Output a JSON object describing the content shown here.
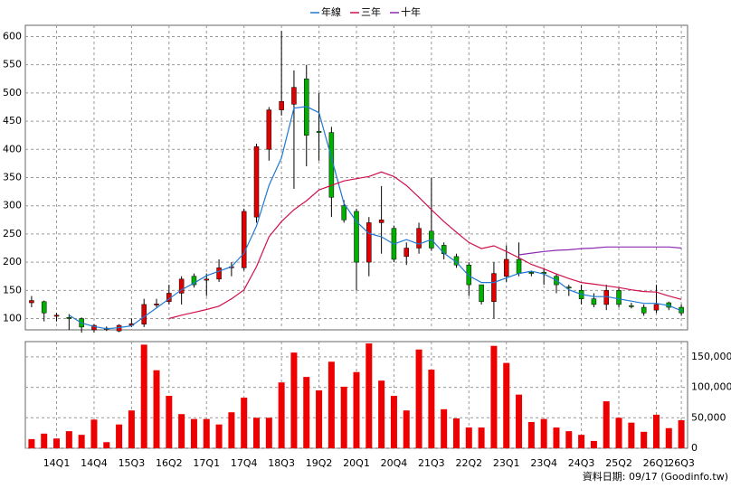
{
  "footer": "資料日期: 09/17 (Goodinfo.tw)",
  "chart_data": [
    {
      "type": "candlestick",
      "categories": [
        null,
        null,
        "14Q1",
        null,
        null,
        "14Q4",
        null,
        null,
        "15Q3",
        null,
        null,
        "16Q2",
        null,
        null,
        "17Q1",
        null,
        null,
        "17Q4",
        null,
        null,
        "18Q3",
        null,
        null,
        "19Q2",
        null,
        null,
        "20Q1",
        null,
        null,
        "20Q4",
        null,
        null,
        "21Q3",
        null,
        null,
        "22Q2",
        null,
        null,
        "23Q1",
        null,
        null,
        "23Q4",
        null,
        null,
        "24Q3",
        null,
        null,
        "25Q2",
        null,
        null,
        "26Q1",
        null,
        "26Q3"
      ],
      "open": [
        128,
        130,
        104,
        102,
        100,
        80,
        83,
        78,
        88,
        90,
        124,
        130,
        145,
        175,
        168,
        170,
        190,
        190,
        280,
        400,
        470,
        480,
        525,
        432,
        430,
        300,
        290,
        200,
        270,
        260,
        210,
        225,
        255,
        230,
        210,
        195,
        160,
        130,
        175,
        205,
        182,
        182,
        175,
        156,
        150,
        135,
        125,
        150,
        123,
        120,
        115,
        128,
        120
      ],
      "high": [
        140,
        132,
        110,
        108,
        102,
        90,
        86,
        90,
        100,
        135,
        135,
        160,
        175,
        180,
        180,
        205,
        200,
        295,
        410,
        475,
        610,
        540,
        550,
        500,
        440,
        310,
        295,
        280,
        335,
        265,
        235,
        270,
        350,
        235,
        215,
        200,
        160,
        200,
        230,
        235,
        185,
        190,
        180,
        160,
        160,
        145,
        160,
        155,
        128,
        125,
        160,
        130,
        125
      ],
      "low": [
        120,
        95,
        95,
        80,
        75,
        75,
        78,
        76,
        85,
        85,
        120,
        125,
        125,
        155,
        140,
        165,
        175,
        185,
        270,
        380,
        460,
        330,
        370,
        380,
        280,
        270,
        150,
        175,
        215,
        200,
        195,
        215,
        220,
        205,
        190,
        140,
        125,
        100,
        165,
        175,
        175,
        160,
        145,
        140,
        125,
        120,
        115,
        120,
        118,
        105,
        110,
        115,
        105
      ],
      "close": [
        132,
        110,
        106,
        100,
        85,
        88,
        81,
        88,
        91,
        125,
        126,
        145,
        170,
        160,
        170,
        190,
        192,
        290,
        405,
        470,
        485,
        510,
        425,
        430,
        315,
        275,
        200,
        270,
        275,
        205,
        225,
        260,
        225,
        215,
        195,
        160,
        130,
        180,
        205,
        180,
        180,
        180,
        160,
        154,
        135,
        125,
        150,
        125,
        121,
        110,
        125,
        120,
        110
      ],
      "up_color": "#e00000",
      "down_color": "#00b000",
      "ylim": [
        80,
        620
      ],
      "yticks": [
        100,
        150,
        200,
        250,
        300,
        350,
        400,
        450,
        500,
        550,
        600
      ],
      "grid": true,
      "series": [
        {
          "name": "年線",
          "color": "#1f78d1",
          "values": [
            null,
            null,
            null,
            106,
            92,
            86,
            82,
            84,
            87,
            103,
            119,
            135,
            151,
            163,
            176,
            184,
            192,
            216,
            264,
            336,
            385,
            473,
            476,
            465,
            385,
            304,
            272,
            251,
            245,
            232,
            240,
            232,
            240,
            216,
            200,
            176,
            164,
            164,
            172,
            180,
            184,
            179,
            168,
            151,
            143,
            139,
            139,
            135,
            131,
            127,
            127,
            123,
            114
          ]
        },
        {
          "name": "三年",
          "color": "#d0104a",
          "values": [
            null,
            null,
            null,
            null,
            null,
            null,
            null,
            null,
            null,
            null,
            null,
            100,
            106,
            111,
            116,
            122,
            135,
            151,
            192,
            245,
            272,
            293,
            309,
            328,
            336,
            344,
            348,
            352,
            360,
            352,
            336,
            315,
            293,
            272,
            253,
            235,
            224,
            229,
            219,
            208,
            196,
            188,
            179,
            171,
            164,
            161,
            158,
            155,
            151,
            148,
            147,
            140,
            134
          ]
        },
        {
          "name": "十年",
          "color": "#8a2ab0",
          "values": [
            null,
            null,
            null,
            null,
            null,
            null,
            null,
            null,
            null,
            null,
            null,
            null,
            null,
            null,
            null,
            null,
            null,
            null,
            null,
            null,
            null,
            null,
            null,
            null,
            null,
            null,
            null,
            null,
            null,
            null,
            null,
            null,
            null,
            null,
            null,
            null,
            null,
            null,
            null,
            213,
            216,
            219,
            221,
            222,
            224,
            225,
            227,
            227,
            227,
            227,
            227,
            227,
            225
          ]
        }
      ]
    },
    {
      "type": "bar",
      "color": "#ee0000",
      "values": [
        15000,
        24000,
        16000,
        28000,
        22000,
        47000,
        10000,
        39000,
        62000,
        170000,
        128000,
        86000,
        56000,
        48000,
        48000,
        39000,
        59000,
        83000,
        50000,
        50000,
        108000,
        157000,
        117000,
        95000,
        142000,
        101000,
        125000,
        172000,
        111000,
        86000,
        62000,
        162000,
        129000,
        64000,
        49000,
        34000,
        34000,
        168000,
        140000,
        88000,
        43000,
        48000,
        34000,
        28000,
        22000,
        12000,
        77000,
        50000,
        42000,
        27000,
        55000,
        33000,
        46000
      ],
      "ylim": [
        0,
        175000
      ],
      "yticks": [
        0,
        {
          "value": 50000,
          "label": "50,000"
        },
        {
          "value": 100000,
          "label": "100,000"
        },
        {
          "value": 150000,
          "label": "150,000"
        }
      ],
      "grid": true
    }
  ]
}
